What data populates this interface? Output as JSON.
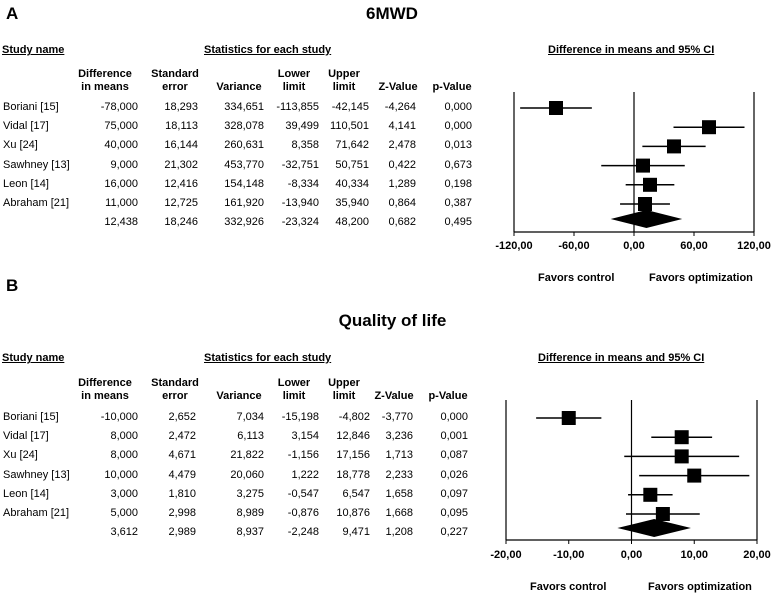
{
  "panels": [
    {
      "letter": "A",
      "title": "6MWD",
      "study_name_header": "Study name",
      "stats_header": "Statistics for each study",
      "ci_header": "Difference in means and 95% CI",
      "columns": [
        {
          "l1": "Difference",
          "l2": "in means"
        },
        {
          "l1": "Standard",
          "l2": "error"
        },
        {
          "l1": "Variance",
          "l2": ""
        },
        {
          "l1": "Lower",
          "l2": "limit"
        },
        {
          "l1": "Upper",
          "l2": "limit"
        },
        {
          "l1": "Z-Value",
          "l2": ""
        },
        {
          "l1": "p-Value",
          "l2": ""
        }
      ],
      "rows": [
        {
          "study": "Boriani [15]",
          "cells": [
            "-78,000",
            "18,293",
            "334,651",
            "-113,855",
            "-42,145",
            "-4,264",
            "0,000"
          ]
        },
        {
          "study": "Vidal [17]",
          "cells": [
            "75,000",
            "18,113",
            "328,078",
            "39,499",
            "110,501",
            "4,141",
            "0,000"
          ]
        },
        {
          "study": "Xu [24]",
          "cells": [
            "40,000",
            "16,144",
            "260,631",
            "8,358",
            "71,642",
            "2,478",
            "0,013"
          ]
        },
        {
          "study": "Sawhney [13]",
          "cells": [
            "9,000",
            "21,302",
            "453,770",
            "-32,751",
            "50,751",
            "0,422",
            "0,673"
          ]
        },
        {
          "study": "Leon [14]",
          "cells": [
            "16,000",
            "12,416",
            "154,148",
            "-8,334",
            "40,334",
            "1,289",
            "0,198"
          ]
        },
        {
          "study": "Abraham [21]",
          "cells": [
            "11,000",
            "12,725",
            "161,920",
            "-13,940",
            "35,940",
            "0,864",
            "0,387"
          ]
        },
        {
          "study": "",
          "cells": [
            "12,438",
            "18,246",
            "332,926",
            "-23,324",
            "48,200",
            "0,682",
            "0,495"
          ]
        }
      ],
      "favors_left": "Favors control",
      "favors_right": "Favors optimization"
    },
    {
      "letter": "B",
      "title": "Quality of life",
      "study_name_header": "Study name",
      "stats_header": "Statistics for each study",
      "ci_header": "Difference in means and 95% CI",
      "columns": [
        {
          "l1": "Difference",
          "l2": "in means"
        },
        {
          "l1": "Standard",
          "l2": "error"
        },
        {
          "l1": "Variance",
          "l2": ""
        },
        {
          "l1": "Lower",
          "l2": "limit"
        },
        {
          "l1": "Upper",
          "l2": "limit"
        },
        {
          "l1": "Z-Value",
          "l2": ""
        },
        {
          "l1": "p-Value",
          "l2": ""
        }
      ],
      "rows": [
        {
          "study": "Boriani [15]",
          "cells": [
            "-10,000",
            "2,652",
            "7,034",
            "-15,198",
            "-4,802",
            "-3,770",
            "0,000"
          ]
        },
        {
          "study": "Vidal [17]",
          "cells": [
            "8,000",
            "2,472",
            "6,113",
            "3,154",
            "12,846",
            "3,236",
            "0,001"
          ]
        },
        {
          "study": "Xu [24]",
          "cells": [
            "8,000",
            "4,671",
            "21,822",
            "-1,156",
            "17,156",
            "1,713",
            "0,087"
          ]
        },
        {
          "study": "Sawhney [13]",
          "cells": [
            "10,000",
            "4,479",
            "20,060",
            "1,222",
            "18,778",
            "2,233",
            "0,026"
          ]
        },
        {
          "study": "Leon [14]",
          "cells": [
            "3,000",
            "1,810",
            "3,275",
            "-0,547",
            "6,547",
            "1,658",
            "0,097"
          ]
        },
        {
          "study": "Abraham [21]",
          "cells": [
            "5,000",
            "2,998",
            "8,989",
            "-0,876",
            "10,876",
            "1,668",
            "0,095"
          ]
        },
        {
          "study": "",
          "cells": [
            "3,612",
            "2,989",
            "8,937",
            "-2,248",
            "9,471",
            "1,208",
            "0,227"
          ]
        }
      ],
      "favors_left": "Favors control",
      "favors_right": "Favors optimization"
    }
  ],
  "chart_data": [
    {
      "type": "forest",
      "title": "6MWD",
      "xlim": [
        -120,
        120
      ],
      "ticks": [
        -120,
        -60,
        0,
        60,
        120
      ],
      "tick_labels": [
        "-120,00",
        "-60,00",
        "0,00",
        "60,00",
        "120,00"
      ],
      "studies": [
        {
          "name": "Boriani [15]",
          "mean": -78,
          "lower": -113.855,
          "upper": -42.145
        },
        {
          "name": "Vidal [17]",
          "mean": 75,
          "lower": 39.499,
          "upper": 110.501
        },
        {
          "name": "Xu [24]",
          "mean": 40,
          "lower": 8.358,
          "upper": 71.642
        },
        {
          "name": "Sawhney [13]",
          "mean": 9,
          "lower": -32.751,
          "upper": 50.751
        },
        {
          "name": "Leon [14]",
          "mean": 16,
          "lower": -8.334,
          "upper": 40.334
        },
        {
          "name": "Abraham [21]",
          "mean": 11,
          "lower": -13.94,
          "upper": 35.94
        }
      ],
      "pooled": {
        "mean": 12.438,
        "lower": -23.324,
        "upper": 48.2
      }
    },
    {
      "type": "forest",
      "title": "Quality of life",
      "xlim": [
        -20,
        20
      ],
      "ticks": [
        -20,
        -10,
        0,
        10,
        20
      ],
      "tick_labels": [
        "-20,00",
        "-10,00",
        "0,00",
        "10,00",
        "20,00"
      ],
      "studies": [
        {
          "name": "Boriani [15]",
          "mean": -10,
          "lower": -15.198,
          "upper": -4.802
        },
        {
          "name": "Vidal [17]",
          "mean": 8,
          "lower": 3.154,
          "upper": 12.846
        },
        {
          "name": "Xu [24]",
          "mean": 8,
          "lower": -1.156,
          "upper": 17.156
        },
        {
          "name": "Sawhney [13]",
          "mean": 10,
          "lower": 1.222,
          "upper": 18.778
        },
        {
          "name": "Leon [14]",
          "mean": 3,
          "lower": -0.547,
          "upper": 6.547
        },
        {
          "name": "Abraham [21]",
          "mean": 5,
          "lower": -0.876,
          "upper": 10.876
        }
      ],
      "pooled": {
        "mean": 3.612,
        "lower": -2.248,
        "upper": 9.471
      }
    }
  ]
}
